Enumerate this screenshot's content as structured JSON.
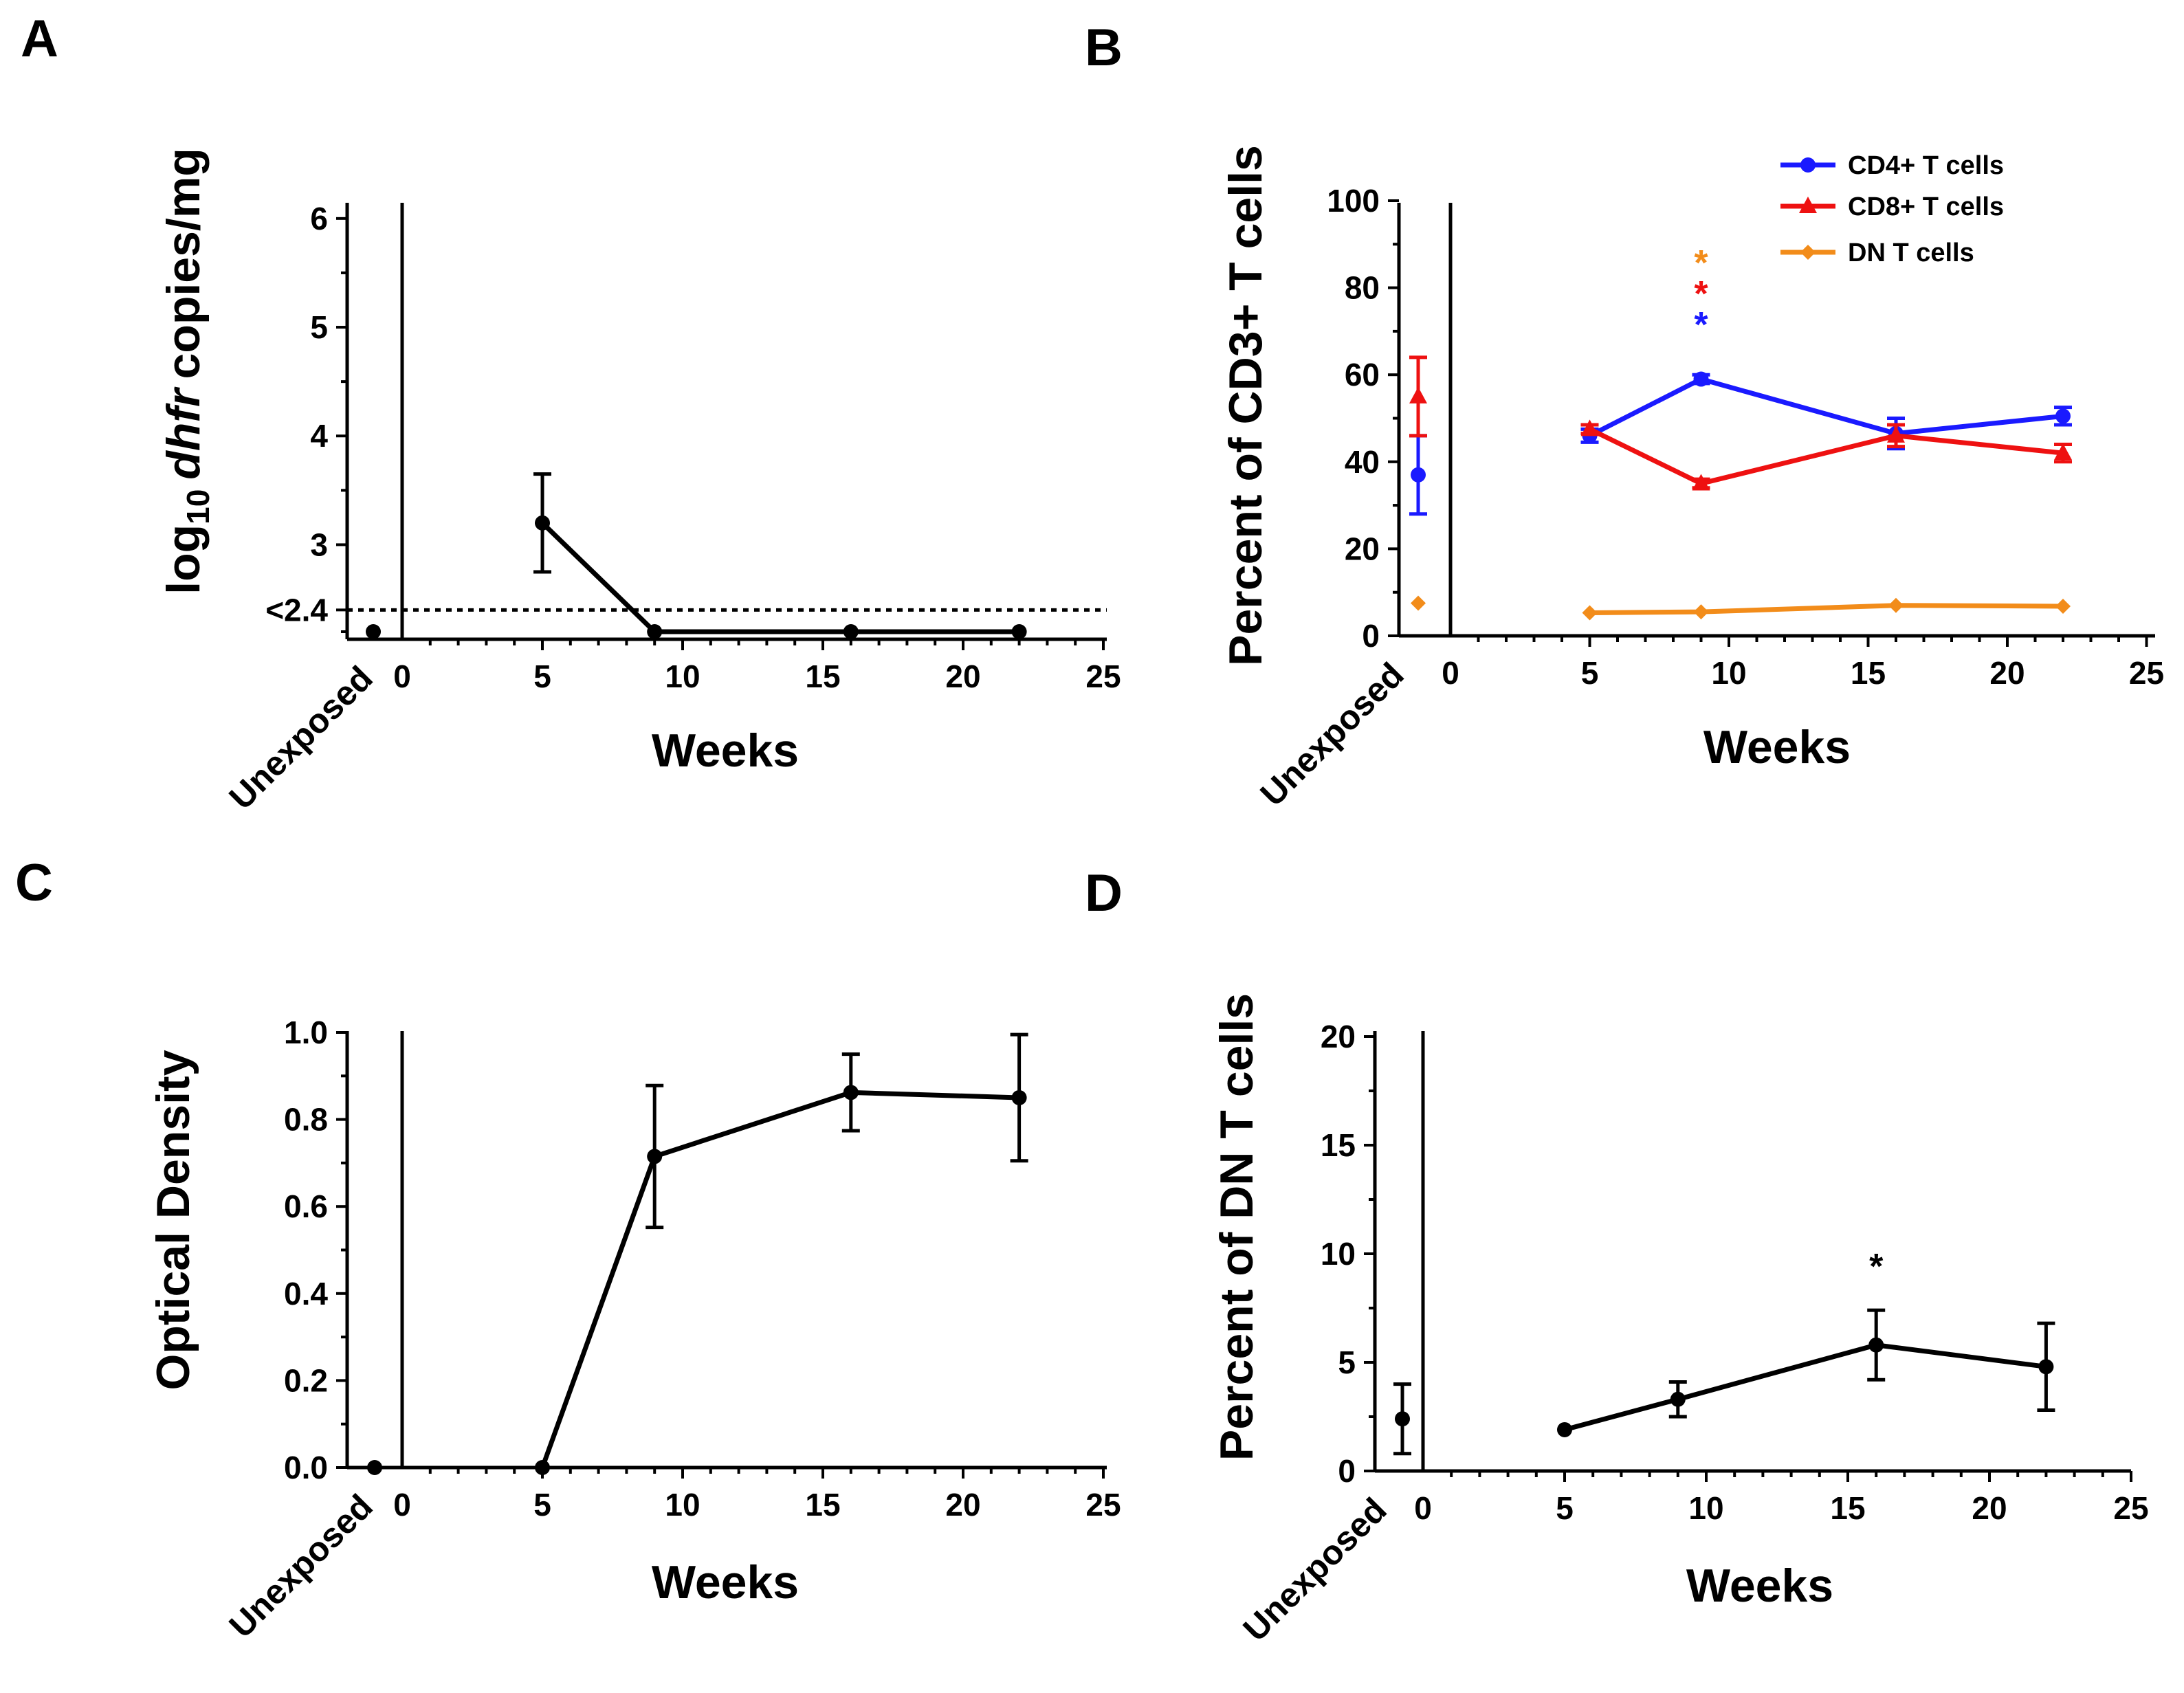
{
  "figure": {
    "panels": [
      {
        "id": "A",
        "letter": "A"
      },
      {
        "id": "B",
        "letter": "B"
      },
      {
        "id": "C",
        "letter": "C"
      },
      {
        "id": "D",
        "letter": "D"
      }
    ]
  },
  "chart_data": [
    {
      "panel": "A",
      "type": "line",
      "title": "",
      "xlabel": "Weeks",
      "ylabel": "log10 dhfr copies/mg",
      "ylabel_parts": {
        "prefix": "log",
        "subscript": "10",
        "italic": "dhfr",
        "suffix": "copies/mg"
      },
      "xlim": [
        0,
        25
      ],
      "ylim": [
        2.2,
        6
      ],
      "xticks": [
        0,
        5,
        10,
        15,
        20,
        25
      ],
      "yticks": [
        3,
        4,
        5,
        6
      ],
      "ytick_labels": [
        {
          "value": 2.4,
          "label": "<2.4"
        },
        {
          "value": 3,
          "label": "3"
        },
        {
          "value": 4,
          "label": "4"
        },
        {
          "value": 5,
          "label": "5"
        },
        {
          "value": 6,
          "label": "6"
        }
      ],
      "detection_limit": {
        "value": 2.4,
        "style": "dotted"
      },
      "unexposed_label": "Unexposed",
      "unexposed": {
        "value": 2.2
      },
      "series": [
        {
          "name": "dhfr",
          "color": "#000000",
          "marker": "circle",
          "x": [
            5,
            9,
            16,
            22
          ],
          "y": [
            3.2,
            2.2,
            2.2,
            2.2
          ],
          "err": [
            0.45,
            0,
            0,
            0
          ]
        }
      ]
    },
    {
      "panel": "B",
      "type": "line",
      "title": "",
      "xlabel": "Weeks",
      "ylabel": "Percent of CD3+ T cells",
      "xlim": [
        0,
        25
      ],
      "ylim": [
        0,
        100
      ],
      "xticks": [
        0,
        5,
        10,
        15,
        20,
        25
      ],
      "yticks": [
        0,
        20,
        40,
        60,
        80,
        100
      ],
      "unexposed_label": "Unexposed",
      "legend_position": "top-right",
      "series": [
        {
          "name": "CD4+ T cells",
          "color": "#1a1aff",
          "marker": "circle",
          "x": [
            5,
            9,
            16,
            22
          ],
          "y": [
            46,
            59,
            46.5,
            50.5
          ],
          "err": [
            1.5,
            1,
            3.5,
            2
          ],
          "unexposed": {
            "value": 37,
            "err": 9
          }
        },
        {
          "name": "CD8+ T cells",
          "color": "#ee1111",
          "marker": "triangle",
          "x": [
            5,
            9,
            16,
            22
          ],
          "y": [
            47.5,
            35,
            46,
            42
          ],
          "err": [
            1,
            1,
            2.5,
            2
          ],
          "unexposed": {
            "value": 55,
            "err": 9
          }
        },
        {
          "name": "DN T cells",
          "color": "#f28c1a",
          "marker": "diamond",
          "x": [
            5,
            9,
            16,
            22
          ],
          "y": [
            5.3,
            5.5,
            7,
            6.8
          ],
          "err": [
            0,
            0,
            0,
            0
          ],
          "unexposed": {
            "value": 7.5,
            "err": 0
          }
        }
      ],
      "annotations": [
        {
          "text": "*",
          "x": 9,
          "color": "#f28c1a"
        },
        {
          "text": "*",
          "x": 9,
          "color": "#ee1111"
        },
        {
          "text": "*",
          "x": 9,
          "color": "#1a1aff"
        }
      ]
    },
    {
      "panel": "C",
      "type": "line",
      "title": "",
      "xlabel": "Weeks",
      "ylabel": "Optical Density",
      "xlim": [
        0,
        25
      ],
      "ylim": [
        0,
        1
      ],
      "xticks": [
        0,
        5,
        10,
        15,
        20,
        25
      ],
      "yticks": [
        0,
        0.2,
        0.4,
        0.6,
        0.8,
        1.0
      ],
      "ytick_labels": [
        {
          "value": 0,
          "label": "0.0"
        },
        {
          "value": 0.2,
          "label": "0.2"
        },
        {
          "value": 0.4,
          "label": "0.4"
        },
        {
          "value": 0.6,
          "label": "0.6"
        },
        {
          "value": 0.8,
          "label": "0.8"
        },
        {
          "value": 1.0,
          "label": "1.0"
        }
      ],
      "unexposed_label": "Unexposed",
      "unexposed": {
        "value": 0
      },
      "series": [
        {
          "name": "Optical Density",
          "color": "#000000",
          "marker": "circle",
          "x": [
            5,
            9,
            16,
            22
          ],
          "y": [
            0,
            0.715,
            0.862,
            0.85
          ],
          "err": [
            0,
            0.163,
            0.088,
            0.145
          ]
        }
      ]
    },
    {
      "panel": "D",
      "type": "line",
      "title": "",
      "xlabel": "Weeks",
      "ylabel": "Percent of DN T cells",
      "xlim": [
        0,
        25
      ],
      "ylim": [
        0,
        20
      ],
      "xticks": [
        0,
        5,
        10,
        15,
        20,
        25
      ],
      "yticks": [
        0,
        5,
        10,
        15,
        20
      ],
      "unexposed_label": "Unexposed",
      "unexposed": {
        "value": 2.4,
        "err": 1.6
      },
      "series": [
        {
          "name": "DN T cells",
          "color": "#000000",
          "marker": "circle",
          "x": [
            5,
            9,
            16,
            22
          ],
          "y": [
            1.9,
            3.3,
            5.8,
            4.8
          ],
          "err": [
            0,
            0.8,
            1.6,
            2
          ]
        }
      ],
      "annotations": [
        {
          "text": "*",
          "x": 16,
          "color": "#000000"
        }
      ]
    }
  ]
}
